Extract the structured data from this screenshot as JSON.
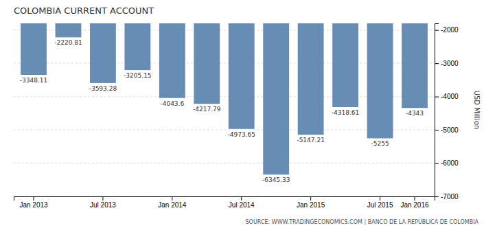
{
  "chart_data": {
    "type": "bar",
    "title": "COLOMBIA CURRENT ACCOUNT",
    "y_label": "USD Million",
    "annotations": [
      "SOURCE: WWW.TRADINGECONOMICS.COM  |  BANCO DE LA REPÚBLICA DE COLOMBIA"
    ],
    "categories": [
      "Jan 2013",
      null,
      "Jul 2013",
      null,
      "Jan 2014",
      null,
      "Jul 2014",
      null,
      "Jan 2015",
      null,
      "Jul 2015",
      "Jan 2016"
    ],
    "values": [
      -3348.11,
      -2220.81,
      -3593.28,
      -3205.15,
      -4043.6,
      -4217.79,
      -4973.65,
      -6345.33,
      -5147.21,
      -4318.61,
      -5255,
      -4343
    ],
    "ylim": [
      -7000,
      -1800
    ],
    "yticks": [
      -7000,
      -6000,
      -5000,
      -4000,
      -3000,
      -2000
    ],
    "grid": true,
    "data_labels": true
  }
}
